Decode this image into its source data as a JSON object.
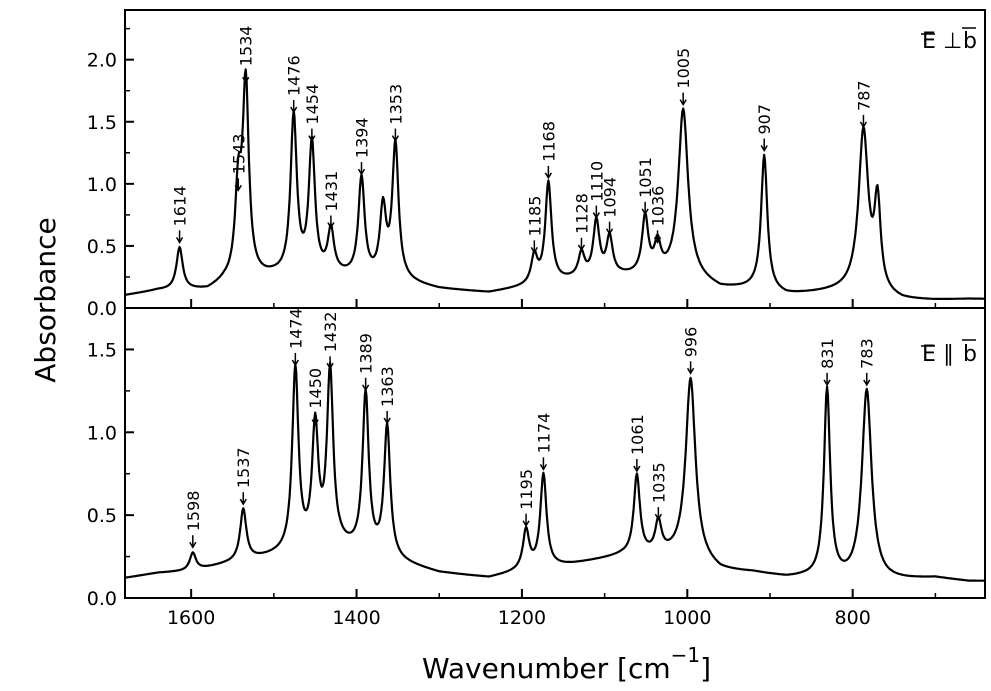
{
  "figure": {
    "ylabel": "Absorbance",
    "xlabel_main": "Wavenumber [cm",
    "xlabel_sup": "−1",
    "xlabel_close": "]"
  },
  "chart_data": [
    {
      "type": "line",
      "panel": "top",
      "polarization_label": "E⊥b",
      "polarization_symbol": "⊥",
      "x_range": [
        1680,
        640
      ],
      "ylim": [
        0.0,
        2.4
      ],
      "y_ticks": [
        0.0,
        0.5,
        1.0,
        1.5,
        2.0
      ],
      "y_tick_labels": [
        "0.0",
        "0.5",
        "1.0",
        "1.5",
        "2.0"
      ],
      "x_ticks": [
        1600,
        1400,
        1200,
        1000,
        800
      ],
      "grid": false,
      "baseline": [
        [
          1680,
          0.1
        ],
        [
          1640,
          0.14
        ],
        [
          1580,
          0.14
        ],
        [
          1560,
          0.2
        ],
        [
          1500,
          0.25
        ],
        [
          1420,
          0.25
        ],
        [
          1340,
          0.2
        ],
        [
          1300,
          0.15
        ],
        [
          1240,
          0.12
        ],
        [
          1200,
          0.16
        ],
        [
          1140,
          0.22
        ],
        [
          1080,
          0.25
        ],
        [
          1040,
          0.25
        ],
        [
          1000,
          0.25
        ],
        [
          960,
          0.15
        ],
        [
          920,
          0.15
        ],
        [
          880,
          0.1
        ],
        [
          840,
          0.12
        ],
        [
          800,
          0.14
        ],
        [
          740,
          0.06
        ],
        [
          700,
          0.06
        ],
        [
          660,
          0.07
        ],
        [
          640,
          0.07
        ]
      ],
      "peaks": [
        {
          "x": 1614,
          "y": 0.48,
          "label": "1614"
        },
        {
          "x": 1543,
          "y": 0.9,
          "label": "1543"
        },
        {
          "x": 1534,
          "y": 1.77,
          "label": "1534"
        },
        {
          "x": 1476,
          "y": 1.53,
          "label": "1476"
        },
        {
          "x": 1454,
          "y": 1.3,
          "label": "1454"
        },
        {
          "x": 1431,
          "y": 0.6,
          "label": "1431"
        },
        {
          "x": 1394,
          "y": 1.03,
          "label": "1394"
        },
        {
          "x": 1368,
          "y": 0.77,
          "label": ""
        },
        {
          "x": 1353,
          "y": 1.3,
          "label": "1353"
        },
        {
          "x": 1185,
          "y": 0.4,
          "label": "1185"
        },
        {
          "x": 1168,
          "y": 1.0,
          "label": "1168"
        },
        {
          "x": 1128,
          "y": 0.42,
          "label": "1128"
        },
        {
          "x": 1110,
          "y": 0.68,
          "label": "1110"
        },
        {
          "x": 1094,
          "y": 0.55,
          "label": "1094"
        },
        {
          "x": 1051,
          "y": 0.71,
          "label": "1051"
        },
        {
          "x": 1036,
          "y": 0.48,
          "label": "1036"
        },
        {
          "x": 1005,
          "y": 1.59,
          "label": "1005"
        },
        {
          "x": 907,
          "y": 1.22,
          "label": "907"
        },
        {
          "x": 787,
          "y": 1.41,
          "label": "787"
        },
        {
          "x": 770,
          "y": 0.8,
          "label": ""
        }
      ]
    },
    {
      "type": "line",
      "panel": "bottom",
      "polarization_label": "E∥b",
      "polarization_symbol": "∥",
      "x_range": [
        1680,
        640
      ],
      "ylim": [
        0.0,
        1.75
      ],
      "y_ticks": [
        0.0,
        0.5,
        1.0,
        1.5
      ],
      "y_tick_labels": [
        "0.0",
        "0.5",
        "1.0",
        "1.5"
      ],
      "x_ticks": [
        1600,
        1400,
        1200,
        1000,
        800
      ],
      "x_tick_labels": [
        "1600",
        "1400",
        "1200",
        "1000",
        "800"
      ],
      "grid": false,
      "baseline": [
        [
          1680,
          0.12
        ],
        [
          1640,
          0.15
        ],
        [
          1600,
          0.16
        ],
        [
          1560,
          0.2
        ],
        [
          1500,
          0.25
        ],
        [
          1420,
          0.3
        ],
        [
          1340,
          0.2
        ],
        [
          1300,
          0.15
        ],
        [
          1240,
          0.12
        ],
        [
          1200,
          0.16
        ],
        [
          1140,
          0.2
        ],
        [
          1080,
          0.25
        ],
        [
          1040,
          0.25
        ],
        [
          1000,
          0.25
        ],
        [
          960,
          0.16
        ],
        [
          920,
          0.15
        ],
        [
          880,
          0.12
        ],
        [
          860,
          0.12
        ],
        [
          810,
          0.1
        ],
        [
          760,
          0.1
        ],
        [
          700,
          0.12
        ],
        [
          660,
          0.1
        ],
        [
          640,
          0.1
        ]
      ],
      "peaks": [
        {
          "x": 1598,
          "y": 0.27,
          "label": "1598"
        },
        {
          "x": 1537,
          "y": 0.53,
          "label": "1537"
        },
        {
          "x": 1474,
          "y": 1.37,
          "label": "1474"
        },
        {
          "x": 1450,
          "y": 1.01,
          "label": "1450"
        },
        {
          "x": 1432,
          "y": 1.35,
          "label": "1432"
        },
        {
          "x": 1389,
          "y": 1.22,
          "label": "1389"
        },
        {
          "x": 1363,
          "y": 1.02,
          "label": "1363"
        },
        {
          "x": 1195,
          "y": 0.4,
          "label": "1195"
        },
        {
          "x": 1174,
          "y": 0.74,
          "label": "1174"
        },
        {
          "x": 1061,
          "y": 0.73,
          "label": "1061"
        },
        {
          "x": 1035,
          "y": 0.44,
          "label": "1035"
        },
        {
          "x": 996,
          "y": 1.32,
          "label": "996"
        },
        {
          "x": 831,
          "y": 1.25,
          "label": "831"
        },
        {
          "x": 783,
          "y": 1.25,
          "label": "783"
        }
      ]
    }
  ]
}
